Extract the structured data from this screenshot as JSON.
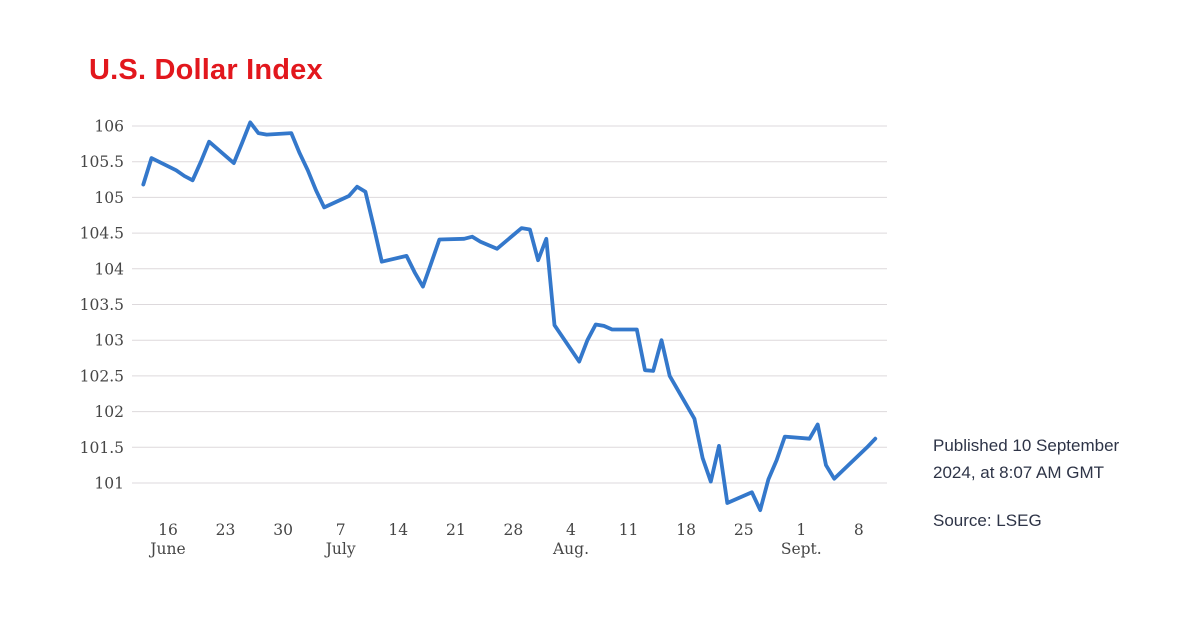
{
  "page": {
    "title": "U.S. Dollar Index"
  },
  "annotations": {
    "published": "Published 10 September 2024, at 8:07 AM GMT",
    "source": "Source: LSEG"
  },
  "colors": {
    "title_red": "#e2171d",
    "line_blue": "#3478cb",
    "grid_gray": "#ddd9dc",
    "axis_text": "#464646",
    "note_text": "#2e3447"
  },
  "chart_data": {
    "type": "line",
    "title": "U.S. Dollar Index",
    "xlabel": "",
    "ylabel": "",
    "ylim": [
      101,
      106
    ],
    "grid": "horizontal",
    "legend": "none",
    "y_tick_labels": [
      "106",
      "105.5",
      "105",
      "104.5",
      "104",
      "103.5",
      "103",
      "102.5",
      "102",
      "101.5",
      "101"
    ],
    "x_ticks": [
      {
        "label": "16",
        "offset": 3,
        "month": "June"
      },
      {
        "label": "23",
        "offset": 10
      },
      {
        "label": "30",
        "offset": 17
      },
      {
        "label": "7",
        "offset": 24,
        "month": "July"
      },
      {
        "label": "14",
        "offset": 31
      },
      {
        "label": "21",
        "offset": 38
      },
      {
        "label": "28",
        "offset": 45
      },
      {
        "label": "4",
        "offset": 52,
        "month": "Aug."
      },
      {
        "label": "11",
        "offset": 59
      },
      {
        "label": "18",
        "offset": 66
      },
      {
        "label": "25",
        "offset": 73
      },
      {
        "label": "1",
        "offset": 80,
        "month": "Sept."
      },
      {
        "label": "8",
        "offset": 87
      }
    ],
    "series": [
      {
        "name": "U.S. Dollar Index",
        "points": [
          {
            "date": "Jun 13",
            "offset": 0,
            "value": 105.18
          },
          {
            "date": "Jun 14",
            "offset": 1,
            "value": 105.55
          },
          {
            "date": "Jun 17",
            "offset": 4,
            "value": 105.38
          },
          {
            "date": "Jun 18",
            "offset": 5,
            "value": 105.3
          },
          {
            "date": "Jun 19",
            "offset": 6,
            "value": 105.24
          },
          {
            "date": "Jun 20",
            "offset": 7,
            "value": 105.5
          },
          {
            "date": "Jun 21",
            "offset": 8,
            "value": 105.78
          },
          {
            "date": "Jun 24",
            "offset": 11,
            "value": 105.48
          },
          {
            "date": "Jun 25",
            "offset": 12,
            "value": 105.76
          },
          {
            "date": "Jun 26",
            "offset": 13,
            "value": 106.05
          },
          {
            "date": "Jun 27",
            "offset": 14,
            "value": 105.9
          },
          {
            "date": "Jun 28",
            "offset": 15,
            "value": 105.88
          },
          {
            "date": "Jul 1",
            "offset": 18,
            "value": 105.9
          },
          {
            "date": "Jul 2",
            "offset": 19,
            "value": 105.62
          },
          {
            "date": "Jul 3",
            "offset": 20,
            "value": 105.38
          },
          {
            "date": "Jul 4",
            "offset": 21,
            "value": 105.1
          },
          {
            "date": "Jul 5",
            "offset": 22,
            "value": 104.86
          },
          {
            "date": "Jul 8",
            "offset": 25,
            "value": 105.02
          },
          {
            "date": "Jul 9",
            "offset": 26,
            "value": 105.15
          },
          {
            "date": "Jul 10",
            "offset": 27,
            "value": 105.08
          },
          {
            "date": "Jul 11",
            "offset": 28,
            "value": 104.6
          },
          {
            "date": "Jul 12",
            "offset": 29,
            "value": 104.1
          },
          {
            "date": "Jul 15",
            "offset": 32,
            "value": 104.18
          },
          {
            "date": "Jul 16",
            "offset": 33,
            "value": 103.95
          },
          {
            "date": "Jul 17",
            "offset": 34,
            "value": 103.75
          },
          {
            "date": "Jul 18",
            "offset": 35,
            "value": 104.08
          },
          {
            "date": "Jul 19",
            "offset": 36,
            "value": 104.41
          },
          {
            "date": "Jul 22",
            "offset": 39,
            "value": 104.42
          },
          {
            "date": "Jul 23",
            "offset": 40,
            "value": 104.45
          },
          {
            "date": "Jul 24",
            "offset": 41,
            "value": 104.38
          },
          {
            "date": "Jul 25",
            "offset": 42,
            "value": 104.33
          },
          {
            "date": "Jul 26",
            "offset": 43,
            "value": 104.28
          },
          {
            "date": "Jul 29",
            "offset": 46,
            "value": 104.57
          },
          {
            "date": "Jul 30",
            "offset": 47,
            "value": 104.55
          },
          {
            "date": "Jul 31",
            "offset": 48,
            "value": 104.12
          },
          {
            "date": "Aug 1",
            "offset": 49,
            "value": 104.42
          },
          {
            "date": "Aug 2",
            "offset": 50,
            "value": 103.21
          },
          {
            "date": "Aug 5",
            "offset": 53,
            "value": 102.7
          },
          {
            "date": "Aug 6",
            "offset": 54,
            "value": 103.0
          },
          {
            "date": "Aug 7",
            "offset": 55,
            "value": 103.22
          },
          {
            "date": "Aug 8",
            "offset": 56,
            "value": 103.2
          },
          {
            "date": "Aug 9",
            "offset": 57,
            "value": 103.15
          },
          {
            "date": "Aug 12",
            "offset": 60,
            "value": 103.15
          },
          {
            "date": "Aug 13",
            "offset": 61,
            "value": 102.58
          },
          {
            "date": "Aug 14",
            "offset": 62,
            "value": 102.57
          },
          {
            "date": "Aug 15",
            "offset": 63,
            "value": 103.0
          },
          {
            "date": "Aug 16",
            "offset": 64,
            "value": 102.5
          },
          {
            "date": "Aug 19",
            "offset": 67,
            "value": 101.9
          },
          {
            "date": "Aug 20",
            "offset": 68,
            "value": 101.35
          },
          {
            "date": "Aug 21",
            "offset": 69,
            "value": 101.02
          },
          {
            "date": "Aug 22",
            "offset": 70,
            "value": 101.52
          },
          {
            "date": "Aug 23",
            "offset": 71,
            "value": 100.72
          },
          {
            "date": "Aug 26",
            "offset": 74,
            "value": 100.87
          },
          {
            "date": "Aug 27",
            "offset": 75,
            "value": 100.62
          },
          {
            "date": "Aug 28",
            "offset": 76,
            "value": 101.05
          },
          {
            "date": "Aug 29",
            "offset": 77,
            "value": 101.32
          },
          {
            "date": "Aug 30",
            "offset": 78,
            "value": 101.65
          },
          {
            "date": "Sep 2",
            "offset": 81,
            "value": 101.62
          },
          {
            "date": "Sep 3",
            "offset": 82,
            "value": 101.82
          },
          {
            "date": "Sep 4",
            "offset": 83,
            "value": 101.25
          },
          {
            "date": "Sep 5",
            "offset": 84,
            "value": 101.06
          },
          {
            "date": "Sep 6",
            "offset": 85,
            "value": 101.17
          },
          {
            "date": "Sep 9",
            "offset": 88,
            "value": 101.5
          },
          {
            "date": "Sep 10",
            "offset": 89,
            "value": 101.62
          }
        ]
      }
    ]
  }
}
